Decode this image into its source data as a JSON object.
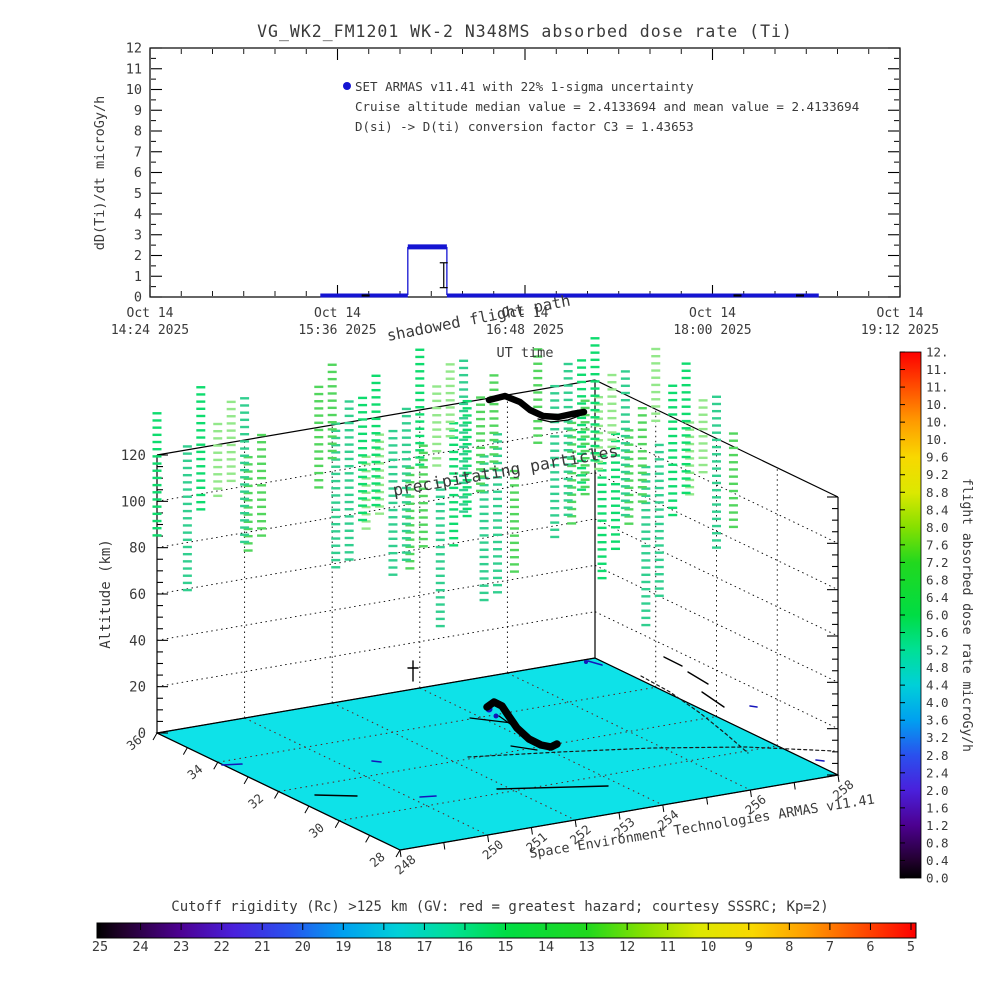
{
  "window": {
    "background": "#ffffff",
    "text_color": "#3a3a3a",
    "line_color": "#000000"
  },
  "chart_data": [
    {
      "id": "dose_time_series",
      "type": "line",
      "title": "VG_WK2_FM1201    WK-2 N348MS absorbed dose rate (Ti)",
      "xlabel": "UT time",
      "ylabel": "dD(Ti)/dt microGy/h",
      "ylim": [
        0,
        12
      ],
      "ytick_step": 1,
      "xlim_hours": [
        14.4,
        19.2
      ],
      "xticks": [
        {
          "hour": 14.4,
          "line1": "Oct 14",
          "line2": "14:24 2025"
        },
        {
          "hour": 15.6,
          "line1": "Oct 14",
          "line2": "15:36 2025"
        },
        {
          "hour": 16.8,
          "line1": "Oct 14",
          "line2": "16:48 2025"
        },
        {
          "hour": 18.0,
          "line1": "Oct 14",
          "line2": "18:00 2025"
        },
        {
          "hour": 19.2,
          "line1": "Oct 14",
          "line2": "19:12 2025"
        }
      ],
      "line_color": "#1414d2",
      "segments": [
        {
          "t0": 15.49,
          "t1": 16.05,
          "value": 0
        },
        {
          "t0": 16.05,
          "t1": 16.3,
          "value": 2.4133694
        },
        {
          "t0": 16.3,
          "t1": 18.68,
          "value": 0
        }
      ],
      "baseline_marks_hours": [
        15.78,
        18.16,
        18.56
      ],
      "error_bar": {
        "t": 16.28,
        "lo": 0.45,
        "hi": 1.65
      },
      "legend": {
        "marker_color": "#1414d2",
        "lines": [
          "SET ARMAS v11.41 with 22% 1-sigma uncertainty",
          "Cruise altitude median value = 2.4133694 and mean value = 2.4133694",
          "D(si) -> D(ti) conversion factor C3 = 1.43653"
        ]
      }
    },
    {
      "id": "flight_scene_3d",
      "type": "scatter",
      "projection": "3d",
      "zlabel": "Altitude (km)",
      "z_ticks": [
        0,
        20,
        40,
        60,
        80,
        100,
        120
      ],
      "z_minor_step": 5,
      "lat_range": [
        28,
        36
      ],
      "lat_tick_labels": [
        "36",
        "34",
        "32",
        "30",
        "28"
      ],
      "lat_tick_values": [
        36,
        34,
        32,
        30,
        28
      ],
      "lon_range": [
        248,
        258
      ],
      "lon_tick_labels": [
        "248",
        "250",
        "251",
        "252",
        "253",
        "254",
        "256",
        "258"
      ],
      "lon_tick_values": [
        248,
        250,
        251,
        252,
        253,
        254,
        256,
        258
      ],
      "wall_grid_alts": [
        20,
        40,
        60,
        80,
        100
      ],
      "wall_grid_lons": [
        250,
        252,
        254,
        256
      ],
      "wall_grid_lats": [
        30,
        32,
        34
      ],
      "floor_color": "#0ee2e8",
      "grid_color": "#5c2020",
      "annotations": {
        "shadowed": "shadowed flight path",
        "precip": "precipitating particles",
        "credit": "Space Environment Technologies ARMAS v11.41"
      },
      "particles": {
        "lats": [
          30,
          31,
          32,
          33,
          34,
          35,
          36
        ],
        "lons": [
          248,
          249,
          250,
          251,
          252,
          253,
          254,
          255,
          256,
          257,
          258
        ],
        "skip": [
          [
            30,
            248
          ],
          [
            30,
            249
          ],
          [
            30,
            250
          ],
          [
            30,
            251
          ],
          [
            31,
            248
          ],
          [
            31,
            249
          ],
          [
            31,
            250
          ],
          [
            32,
            248
          ],
          [
            33,
            249
          ],
          [
            36,
            257
          ]
        ],
        "alt_top_base": 130,
        "colors": [
          "#93e88a",
          "#52d65d",
          "#0edc6e",
          "#31cf8f"
        ]
      },
      "flight_path_color": "#000000",
      "contour_color": "#1515bb",
      "paths": {
        "cruise": [
          [
            489,
            400
          ],
          [
            505,
            396
          ],
          [
            520,
            402
          ],
          [
            530,
            410
          ],
          [
            543,
            416
          ],
          [
            558,
            417
          ],
          [
            572,
            414
          ],
          [
            584,
            412
          ]
        ],
        "cruise_outline": [
          [
            584,
            414
          ],
          [
            568,
            420
          ],
          [
            551,
            422
          ],
          [
            538,
            419
          ]
        ],
        "floor_main": [
          [
            487,
            707
          ],
          [
            494,
            702
          ],
          [
            502,
            706
          ],
          [
            508,
            715
          ],
          [
            517,
            728
          ],
          [
            529,
            739
          ],
          [
            541,
            745
          ],
          [
            551,
            747
          ],
          [
            557,
            744
          ]
        ],
        "floor_whiskers": [
          [
            [
              470,
              718
            ],
            [
              512,
              723
            ]
          ],
          [
            [
              520,
              731
            ],
            [
              499,
              716
            ]
          ],
          [
            [
              511,
              746
            ],
            [
              537,
              750
            ]
          ]
        ],
        "black_lines": [
          [
            [
              497,
              789
            ],
            [
              608,
              786
            ]
          ],
          [
            [
              315,
              795
            ],
            [
              357,
              796
            ]
          ],
          [
            [
              664,
              657
            ],
            [
              682,
              666
            ]
          ],
          [
            [
              688,
              672
            ],
            [
              708,
              684
            ]
          ],
          [
            [
              702,
              692
            ],
            [
              724,
              707
            ]
          ],
          [
            [
              408,
              668
            ],
            [
              418,
              668
            ]
          ],
          [
            [
              413,
              661
            ],
            [
              413,
              681
            ]
          ]
        ],
        "map_dash": [
          [
            [
              468,
              757
            ],
            [
              560,
              752
            ],
            [
              652,
              748
            ],
            [
              746,
              747
            ],
            [
              834,
              751
            ]
          ],
          [
            [
              641,
              676
            ],
            [
              670,
              692
            ],
            [
              700,
              713
            ],
            [
              726,
              734
            ],
            [
              748,
              753
            ]
          ]
        ],
        "blue_marks": [
          [
            [
              222,
              765
            ],
            [
              242,
              764
            ]
          ],
          [
            [
              588,
              661
            ],
            [
              602,
              665
            ]
          ],
          [
            [
              420,
              797
            ],
            [
              436,
              796
            ]
          ],
          [
            [
              372,
              761
            ],
            [
              381,
              762
            ]
          ],
          [
            [
              750,
              706
            ],
            [
              757,
              707
            ]
          ],
          [
            [
              816,
              760
            ],
            [
              824,
              761
            ]
          ]
        ],
        "blue_blobs": [
          [
            489,
            709,
            3.5
          ],
          [
            496,
            716,
            2.5
          ],
          [
            586,
            662,
            2
          ]
        ]
      }
    },
    {
      "id": "dose_colorbar",
      "type": "colorbar",
      "orientation": "vertical",
      "label": "flight absorbed dose rate microGy/h",
      "min": 0,
      "max": 12,
      "tick_step": 0.4,
      "tick_labels": [
        "12.",
        "11.",
        "11.",
        "10.",
        "10.",
        "10.",
        "9.6",
        "9.2",
        "8.8",
        "8.4",
        "8.0",
        "7.6",
        "7.2",
        "6.8",
        "6.4",
        "6.0",
        "5.6",
        "5.2",
        "4.8",
        "4.4",
        "4.0",
        "3.6",
        "3.2",
        "2.8",
        "2.4",
        "2.0",
        "1.6",
        "1.2",
        "0.8",
        "0.4",
        "0.0"
      ],
      "stops": [
        [
          "0.00",
          "#000000"
        ],
        [
          "0.033",
          "#22002e"
        ],
        [
          "0.10",
          "#4c0090"
        ],
        [
          "0.167",
          "#4a20dc"
        ],
        [
          "0.233",
          "#2a50ee"
        ],
        [
          "0.30",
          "#00a0f0"
        ],
        [
          "0.367",
          "#00d0d8"
        ],
        [
          "0.433",
          "#00e096"
        ],
        [
          "0.50",
          "#00dd44"
        ],
        [
          "0.60",
          "#22d81e"
        ],
        [
          "0.667",
          "#86e000"
        ],
        [
          "0.733",
          "#dce800"
        ],
        [
          "0.80",
          "#f8d800"
        ],
        [
          "0.867",
          "#ff9c00"
        ],
        [
          "0.933",
          "#ff4e00"
        ],
        [
          "1.00",
          "#fe0000"
        ]
      ]
    },
    {
      "id": "cutoff_rigidity_scale",
      "type": "colorbar",
      "orientation": "horizontal",
      "title": "Cutoff rigidity (Rc) >125 km (GV: red = greatest hazard; courtesy SSSRC; Kp=2)",
      "tick_labels": [
        "25",
        "24",
        "23",
        "22",
        "21",
        "20",
        "19",
        "18",
        "17",
        "16",
        "15",
        "14",
        "13",
        "12",
        "11",
        "10",
        "9",
        "8",
        "7",
        "6",
        "5"
      ],
      "stops": [
        [
          "0.00",
          "#000000"
        ],
        [
          "0.033",
          "#22002e"
        ],
        [
          "0.10",
          "#4c0090"
        ],
        [
          "0.167",
          "#4a20dc"
        ],
        [
          "0.233",
          "#2a50ee"
        ],
        [
          "0.30",
          "#00a0f0"
        ],
        [
          "0.367",
          "#00d0d8"
        ],
        [
          "0.433",
          "#00e096"
        ],
        [
          "0.50",
          "#00dd44"
        ],
        [
          "0.60",
          "#22d81e"
        ],
        [
          "0.667",
          "#86e000"
        ],
        [
          "0.733",
          "#dce800"
        ],
        [
          "0.80",
          "#f8d800"
        ],
        [
          "0.867",
          "#ff9c00"
        ],
        [
          "0.933",
          "#ff4e00"
        ],
        [
          "1.00",
          "#fe0000"
        ]
      ]
    }
  ]
}
